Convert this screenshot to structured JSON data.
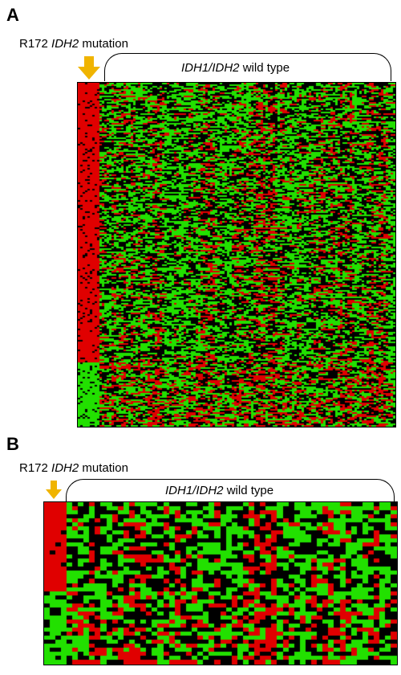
{
  "panel_a": {
    "letter": "A",
    "mutation_prefix": "R172 ",
    "mutation_gene": "IDH2",
    "mutation_suffix": " mutation",
    "wildtype_gene": "IDH1/IDH2",
    "wildtype_suffix": " wild type"
  },
  "panel_b": {
    "letter": "B",
    "mutation_prefix": "R172 ",
    "mutation_gene": "IDH2",
    "mutation_suffix": " mutation",
    "wildtype_gene": "IDH1/IDH2",
    "wildtype_suffix": " wild type"
  },
  "colors": {
    "high": "#e00000",
    "low": "#22e000",
    "neutral": "#000000",
    "arrow": "#f0b400"
  },
  "legend_icons": [
    "down-arrow-icon"
  ]
}
